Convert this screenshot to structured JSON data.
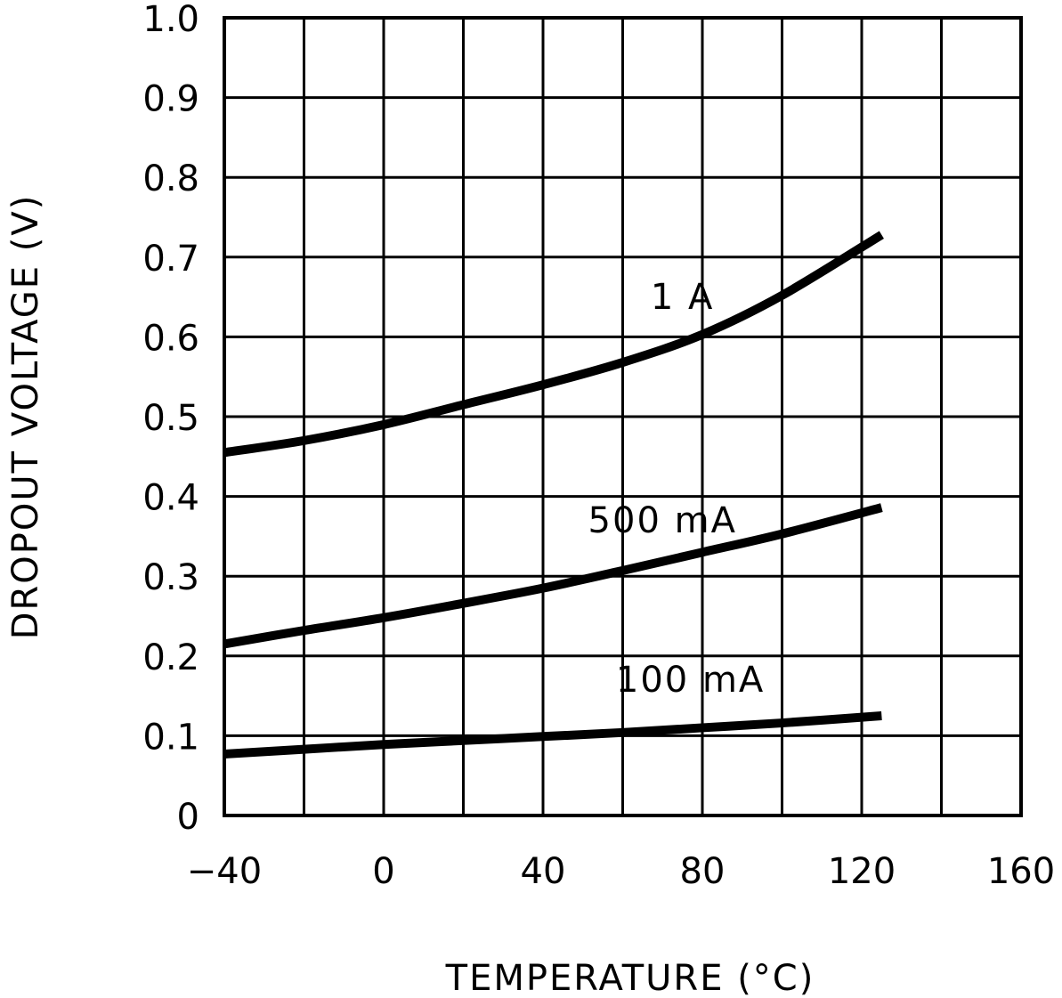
{
  "chart_data": {
    "type": "line",
    "title": "",
    "xlabel": "TEMPERATURE (°C)",
    "ylabel": "DROPOUT VOLTAGE (V)",
    "xlim": [
      -40,
      160
    ],
    "ylim": [
      0,
      1.0
    ],
    "x_grid_step": 20,
    "y_grid_step": 0.1,
    "grid": true,
    "x_ticks": [
      -40,
      0,
      40,
      80,
      120,
      160
    ],
    "x_tick_labels": [
      "−40",
      "0",
      "40",
      "80",
      "120",
      "160"
    ],
    "y_ticks": [
      0,
      0.1,
      0.2,
      0.3,
      0.4,
      0.5,
      0.6,
      0.7,
      0.8,
      0.9,
      1.0
    ],
    "y_tick_labels": [
      "0",
      "0.1",
      "0.2",
      "0.3",
      "0.4",
      "0.5",
      "0.6",
      "0.7",
      "0.8",
      "0.9",
      "1.0"
    ],
    "series": [
      {
        "name": "1 A",
        "label_at": [
          75,
          0.635
        ],
        "x": [
          -40,
          -20,
          0,
          20,
          40,
          60,
          80,
          100,
          125
        ],
        "y": [
          0.455,
          0.47,
          0.49,
          0.515,
          0.54,
          0.568,
          0.603,
          0.652,
          0.728
        ]
      },
      {
        "name": "500 mA",
        "label_at": [
          70,
          0.355
        ],
        "x": [
          -40,
          -20,
          0,
          20,
          40,
          60,
          80,
          100,
          125
        ],
        "y": [
          0.215,
          0.232,
          0.248,
          0.266,
          0.285,
          0.307,
          0.33,
          0.353,
          0.386
        ]
      },
      {
        "name": "100 mA",
        "label_at": [
          77,
          0.155
        ],
        "x": [
          -40,
          -20,
          0,
          20,
          40,
          60,
          80,
          100,
          125
        ],
        "y": [
          0.077,
          0.083,
          0.089,
          0.094,
          0.099,
          0.104,
          0.11,
          0.116,
          0.125
        ]
      }
    ]
  }
}
